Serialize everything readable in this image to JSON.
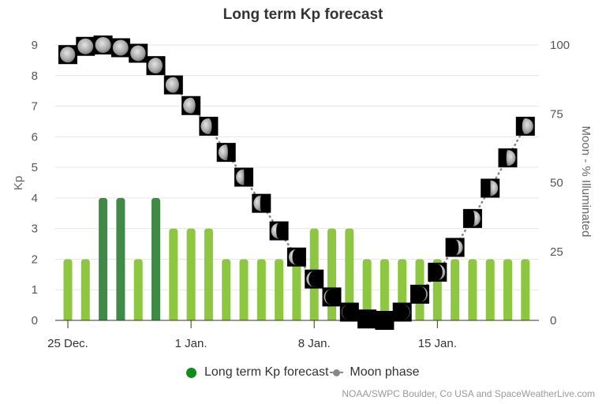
{
  "chart_data": {
    "type": "bar+line",
    "title": "Long term Kp forecast",
    "xlabel": "",
    "ylabel": "Kp",
    "ylabel_right": "Moon - % Illuminated",
    "ylim": [
      0,
      9
    ],
    "ylim_right": [
      0,
      100
    ],
    "grid": true,
    "legend_position": "bottom",
    "x_tick_labels": [
      "25 Dec.",
      "1 Jan.",
      "8 Jan.",
      "15 Jan."
    ],
    "y_ticks": [
      "0",
      "1",
      "2",
      "3",
      "4",
      "5",
      "6",
      "7",
      "8",
      "9"
    ],
    "y_right_ticks": [
      "0",
      "25",
      "50",
      "75",
      "100"
    ],
    "categories": [
      "25 Dec",
      "26 Dec",
      "27 Dec",
      "28 Dec",
      "29 Dec",
      "30 Dec",
      "31 Dec",
      "1 Jan",
      "2 Jan",
      "3 Jan",
      "4 Jan",
      "5 Jan",
      "6 Jan",
      "7 Jan",
      "8 Jan",
      "9 Jan",
      "10 Jan",
      "11 Jan",
      "12 Jan",
      "13 Jan",
      "14 Jan",
      "15 Jan",
      "16 Jan",
      "17 Jan",
      "18 Jan",
      "19 Jan",
      "20 Jan"
    ],
    "series": [
      {
        "name": "Long term Kp forecast",
        "type": "bar",
        "values": [
          2,
          2,
          4,
          4,
          2,
          4,
          3,
          3,
          3,
          2,
          2,
          2,
          2,
          2,
          3,
          3,
          3,
          2,
          2,
          2,
          2,
          2,
          2,
          2,
          2,
          2,
          2
        ]
      },
      {
        "name": "Moon phase",
        "type": "line",
        "axis": "right",
        "values": [
          96.5,
          99.5,
          100,
          99,
          97,
          92.5,
          85.5,
          78,
          70.5,
          61,
          52,
          42.5,
          32.5,
          23,
          15,
          8.5,
          3,
          0.5,
          0,
          3,
          9.5,
          17.5,
          26.5,
          37,
          48,
          59,
          70.5
        ]
      }
    ],
    "colors": {
      "bar_low": "#8dc63f",
      "bar_active": "#3f8a47",
      "legend_kp": "#138a1d",
      "moon_line": "#888888",
      "grid": "#e6e6e6",
      "axis_text": "#555555"
    }
  },
  "legend": {
    "kp_label": "Long term Kp forecast",
    "moon_label": "Moon phase"
  },
  "credits": "NOAA/SWPC Boulder, Co USA and SpaceWeatherLive.com"
}
